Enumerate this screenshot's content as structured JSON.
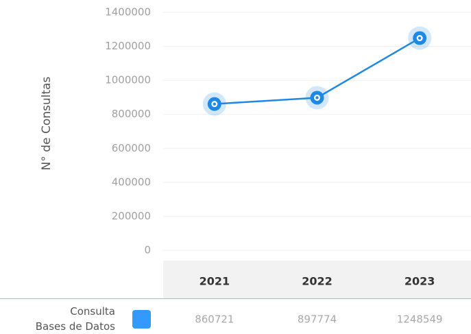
{
  "chart_data": {
    "type": "line",
    "y_axis_label": "N° de Consultas",
    "categories": [
      "2021",
      "2022",
      "2023"
    ],
    "series": [
      {
        "name": "Consulta\nBases de Datos",
        "color": "#1e88e5",
        "values": [
          860721,
          897774,
          1248549
        ]
      }
    ],
    "ylim": [
      0,
      1400000
    ],
    "yticks": [
      0,
      200000,
      400000,
      600000,
      800000,
      1000000,
      1200000,
      1400000
    ],
    "grid": true
  }
}
